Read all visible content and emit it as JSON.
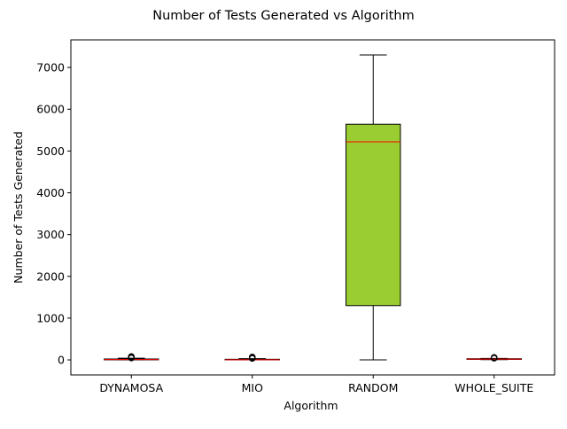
{
  "chart_data": {
    "type": "box",
    "title": "Number of Tests Generated vs Algorithm",
    "xlabel": "Algorithm",
    "ylabel": "Number of Tests Generated",
    "categories": [
      "DYNAMOSA",
      "MIO",
      "RANDOM",
      "WHOLE_SUITE"
    ],
    "ylim": [
      -360,
      7660
    ],
    "yticks": [
      0,
      1000,
      2000,
      3000,
      4000,
      5000,
      6000,
      7000
    ],
    "grid": false,
    "colors": {
      "box_fill": "#9acd32",
      "median": "#ff0000",
      "edge": "#000000"
    },
    "boxes": [
      {
        "name": "DYNAMOSA",
        "whislo": 0,
        "q1": 2,
        "med": 8,
        "q3": 22,
        "whishi": 40,
        "fliers": [
          45,
          50,
          55,
          60,
          65,
          70,
          75,
          80
        ]
      },
      {
        "name": "MIO",
        "whislo": 0,
        "q1": 1,
        "med": 4,
        "q3": 15,
        "whishi": 30,
        "fliers": [
          35,
          40,
          45,
          50,
          55,
          60,
          65,
          70
        ]
      },
      {
        "name": "RANDOM",
        "whislo": 0,
        "q1": 1300,
        "med": 5220,
        "q3": 5640,
        "whishi": 7300,
        "fliers": []
      },
      {
        "name": "WHOLE_SUITE",
        "whislo": 5,
        "q1": 12,
        "med": 20,
        "q3": 28,
        "whishi": 36,
        "fliers": [
          40,
          45,
          50,
          55,
          60
        ]
      }
    ]
  }
}
